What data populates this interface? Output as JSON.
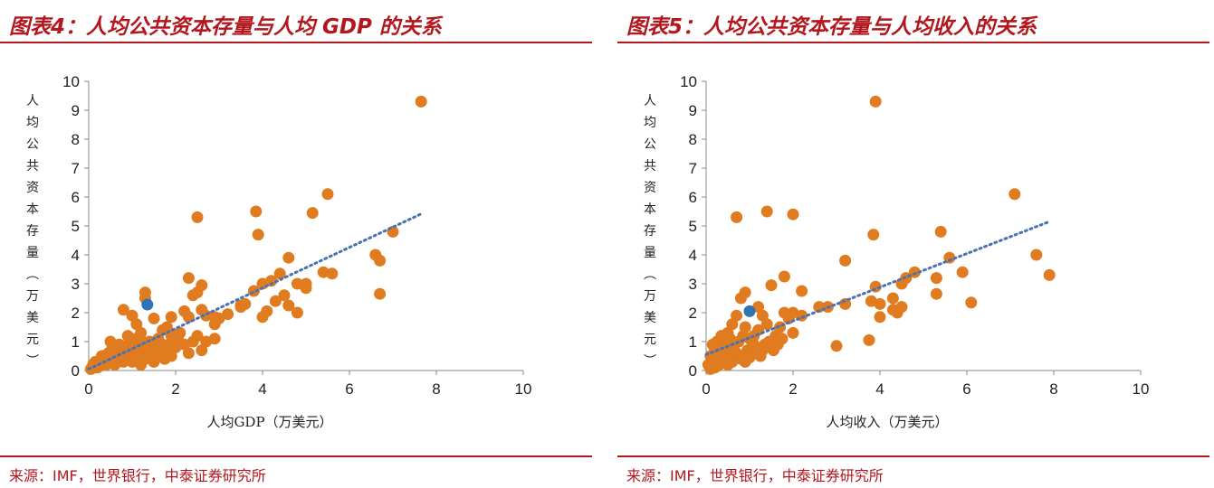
{
  "panels": [
    {
      "title": "图表4：人均公共资本存量与人均 GDP 的关系",
      "source": "来源：IMF，世界银行，中泰证券研究所",
      "chart_data": {
        "type": "scatter",
        "xlabel": "人均GDP（万美元）",
        "ylabel": "人均公共资本存量（万美元）",
        "xlim": [
          0,
          10
        ],
        "ylim": [
          0,
          10
        ],
        "xticks": [
          "0",
          "2",
          "4",
          "6",
          "8",
          "10"
        ],
        "yticks": [
          "0",
          "1",
          "2",
          "3",
          "4",
          "5",
          "6",
          "7",
          "8",
          "9",
          "10"
        ],
        "point_color": "#e07b1f",
        "highlight_color": "#2e75b6",
        "trend_color": "#4a72b0",
        "trendline": [
          [
            0,
            0.05
          ],
          [
            7.7,
            5.45
          ]
        ],
        "highlight": [
          [
            1.35,
            2.28
          ]
        ],
        "points": [
          [
            7.65,
            9.3
          ],
          [
            5.5,
            6.1
          ],
          [
            2.5,
            5.3
          ],
          [
            3.85,
            5.5
          ],
          [
            3.9,
            4.7
          ],
          [
            5.15,
            5.45
          ],
          [
            7.0,
            4.8
          ],
          [
            6.6,
            4.0
          ],
          [
            6.7,
            3.8
          ],
          [
            6.7,
            2.65
          ],
          [
            5.6,
            3.35
          ],
          [
            5.4,
            3.4
          ],
          [
            4.6,
            3.9
          ],
          [
            4.4,
            3.35
          ],
          [
            4.2,
            3.1
          ],
          [
            4.0,
            3.0
          ],
          [
            3.8,
            2.75
          ],
          [
            4.8,
            3.0
          ],
          [
            5.0,
            2.85
          ],
          [
            5.0,
            3.0
          ],
          [
            4.5,
            2.6
          ],
          [
            4.3,
            2.4
          ],
          [
            4.6,
            2.25
          ],
          [
            4.8,
            2.0
          ],
          [
            4.0,
            1.85
          ],
          [
            4.1,
            2.05
          ],
          [
            3.6,
            2.3
          ],
          [
            3.5,
            2.25
          ],
          [
            3.5,
            2.2
          ],
          [
            3.2,
            1.95
          ],
          [
            3.0,
            1.8
          ],
          [
            2.9,
            1.85
          ],
          [
            2.3,
            3.2
          ],
          [
            2.6,
            2.95
          ],
          [
            2.5,
            2.7
          ],
          [
            2.4,
            2.6
          ],
          [
            2.2,
            2.05
          ],
          [
            2.3,
            1.85
          ],
          [
            2.6,
            2.1
          ],
          [
            2.7,
            1.9
          ],
          [
            2.9,
            1.6
          ],
          [
            2.5,
            1.2
          ],
          [
            2.9,
            1.1
          ],
          [
            2.7,
            1.0
          ],
          [
            2.4,
            1.0
          ],
          [
            2.2,
            0.9
          ],
          [
            2.0,
            0.8
          ],
          [
            2.6,
            0.7
          ],
          [
            2.3,
            0.6
          ],
          [
            1.9,
            1.85
          ],
          [
            1.8,
            1.5
          ],
          [
            1.7,
            1.4
          ],
          [
            1.9,
            1.2
          ],
          [
            2.1,
            1.3
          ],
          [
            1.5,
            1.8
          ],
          [
            1.3,
            2.7
          ],
          [
            1.3,
            2.5
          ],
          [
            0.8,
            2.1
          ],
          [
            1.0,
            1.9
          ],
          [
            1.1,
            1.6
          ],
          [
            1.2,
            1.3
          ],
          [
            1.2,
            1.05
          ],
          [
            1.0,
            1.1
          ],
          [
            0.9,
            1.2
          ],
          [
            1.4,
            1.0
          ],
          [
            1.5,
            0.8
          ],
          [
            1.6,
            1.1
          ],
          [
            1.7,
            0.9
          ],
          [
            1.8,
            0.7
          ],
          [
            1.9,
            0.5
          ],
          [
            1.4,
            0.6
          ],
          [
            1.2,
            0.5
          ],
          [
            1.0,
            0.6
          ],
          [
            0.8,
            0.7
          ],
          [
            0.7,
            0.9
          ],
          [
            0.5,
            1.0
          ],
          [
            0.6,
            0.6
          ],
          [
            0.5,
            0.5
          ],
          [
            0.4,
            0.4
          ],
          [
            0.3,
            0.3
          ],
          [
            0.2,
            0.2
          ],
          [
            0.1,
            0.1
          ],
          [
            0.1,
            0.2
          ],
          [
            0.2,
            0.1
          ],
          [
            0.3,
            0.5
          ],
          [
            0.4,
            0.2
          ],
          [
            0.5,
            0.3
          ],
          [
            0.6,
            0.2
          ],
          [
            0.7,
            0.4
          ],
          [
            0.8,
            0.3
          ],
          [
            0.9,
            0.5
          ],
          [
            1.0,
            0.3
          ],
          [
            1.1,
            0.4
          ],
          [
            1.2,
            0.2
          ],
          [
            1.3,
            0.4
          ],
          [
            1.5,
            0.3
          ],
          [
            0.05,
            0.05
          ],
          [
            0.15,
            0.3
          ],
          [
            0.25,
            0.15
          ],
          [
            0.35,
            0.25
          ],
          [
            0.45,
            0.6
          ],
          [
            0.55,
            0.8
          ],
          [
            0.65,
            0.35
          ],
          [
            0.75,
            0.55
          ],
          [
            0.85,
            0.85
          ],
          [
            0.95,
            0.95
          ],
          [
            1.05,
            0.8
          ],
          [
            1.15,
            0.75
          ],
          [
            1.25,
            0.9
          ],
          [
            1.35,
            0.7
          ],
          [
            1.45,
            0.5
          ],
          [
            1.55,
            0.6
          ],
          [
            1.65,
            0.7
          ],
          [
            1.75,
            0.4
          ],
          [
            1.85,
            0.9
          ],
          [
            1.95,
            1.0
          ],
          [
            2.05,
            1.1
          ]
        ]
      }
    },
    {
      "title": "图表5：人均公共资本存量与人均收入的关系",
      "source": "来源：IMF，世界银行，中泰证券研究所",
      "chart_data": {
        "type": "scatter",
        "xlabel": "人均收入（万美元）",
        "ylabel": "人均公共资本存量（万美元）",
        "xlim": [
          0,
          10
        ],
        "ylim": [
          0,
          10
        ],
        "xticks": [
          "0",
          "2",
          "4",
          "6",
          "8",
          "10"
        ],
        "yticks": [
          "0",
          "1",
          "2",
          "3",
          "4",
          "5",
          "6",
          "7",
          "8",
          "9",
          "10"
        ],
        "point_color": "#e07b1f",
        "highlight_color": "#2e75b6",
        "trend_color": "#4a72b0",
        "trendline": [
          [
            0,
            0.55
          ],
          [
            7.9,
            5.15
          ]
        ],
        "highlight": [
          [
            1.0,
            2.05
          ]
        ],
        "points": [
          [
            3.9,
            9.3
          ],
          [
            7.1,
            6.1
          ],
          [
            0.7,
            5.3
          ],
          [
            1.4,
            5.5
          ],
          [
            2.0,
            5.4
          ],
          [
            3.85,
            4.7
          ],
          [
            5.4,
            4.8
          ],
          [
            7.6,
            4.0
          ],
          [
            7.9,
            3.3
          ],
          [
            6.1,
            2.35
          ],
          [
            5.9,
            3.4
          ],
          [
            5.6,
            3.9
          ],
          [
            5.3,
            3.2
          ],
          [
            5.3,
            2.65
          ],
          [
            4.8,
            3.4
          ],
          [
            4.6,
            3.2
          ],
          [
            4.5,
            3.0
          ],
          [
            4.3,
            2.5
          ],
          [
            4.5,
            2.2
          ],
          [
            4.4,
            2.0
          ],
          [
            4.3,
            2.1
          ],
          [
            4.0,
            1.85
          ],
          [
            4.0,
            2.3
          ],
          [
            3.9,
            2.9
          ],
          [
            3.8,
            2.4
          ],
          [
            3.75,
            1.05
          ],
          [
            3.2,
            3.8
          ],
          [
            3.2,
            2.3
          ],
          [
            3.0,
            0.85
          ],
          [
            2.8,
            2.2
          ],
          [
            2.6,
            2.2
          ],
          [
            2.2,
            2.75
          ],
          [
            1.8,
            3.25
          ],
          [
            2.0,
            2.0
          ],
          [
            2.2,
            1.9
          ],
          [
            1.9,
            1.8
          ],
          [
            1.8,
            2.0
          ],
          [
            1.7,
            1.5
          ],
          [
            2.0,
            1.3
          ],
          [
            1.6,
            1.2
          ],
          [
            1.5,
            2.95
          ],
          [
            0.9,
            2.7
          ],
          [
            0.8,
            2.5
          ],
          [
            1.2,
            2.2
          ],
          [
            1.3,
            1.9
          ],
          [
            1.4,
            1.6
          ],
          [
            1.2,
            1.4
          ],
          [
            1.1,
            1.2
          ],
          [
            1.0,
            1.1
          ],
          [
            0.9,
            1.5
          ],
          [
            0.7,
            1.9
          ],
          [
            0.6,
            1.6
          ],
          [
            0.5,
            1.3
          ],
          [
            0.4,
            1.1
          ],
          [
            0.3,
            0.9
          ],
          [
            0.2,
            0.7
          ],
          [
            0.1,
            0.5
          ],
          [
            0.05,
            0.2
          ],
          [
            0.15,
            0.3
          ],
          [
            0.25,
            0.15
          ],
          [
            0.35,
            0.4
          ],
          [
            0.45,
            0.6
          ],
          [
            0.55,
            0.8
          ],
          [
            0.65,
            0.9
          ],
          [
            0.75,
            1.0
          ],
          [
            0.85,
            1.2
          ],
          [
            0.95,
            0.7
          ],
          [
            1.05,
            0.8
          ],
          [
            1.15,
            0.6
          ],
          [
            1.25,
            0.5
          ],
          [
            1.35,
            0.9
          ],
          [
            1.45,
            1.0
          ],
          [
            1.55,
            0.7
          ],
          [
            1.65,
            0.9
          ],
          [
            1.75,
            1.1
          ],
          [
            0.3,
            0.2
          ],
          [
            0.4,
            0.3
          ],
          [
            0.5,
            0.5
          ],
          [
            0.6,
            0.3
          ],
          [
            0.7,
            0.6
          ],
          [
            0.8,
            0.4
          ],
          [
            0.2,
            0.1
          ],
          [
            0.1,
            0.05
          ],
          [
            0.3,
            0.6
          ],
          [
            0.5,
            0.2
          ],
          [
            0.6,
            0.7
          ],
          [
            0.9,
            0.3
          ],
          [
            1.0,
            0.45
          ],
          [
            1.1,
            0.9
          ],
          [
            1.3,
            0.7
          ],
          [
            0.4,
            0.8
          ],
          [
            0.25,
            1.0
          ],
          [
            0.15,
            0.9
          ],
          [
            0.35,
            1.2
          ],
          [
            0.55,
            1.1
          ]
        ]
      }
    }
  ]
}
